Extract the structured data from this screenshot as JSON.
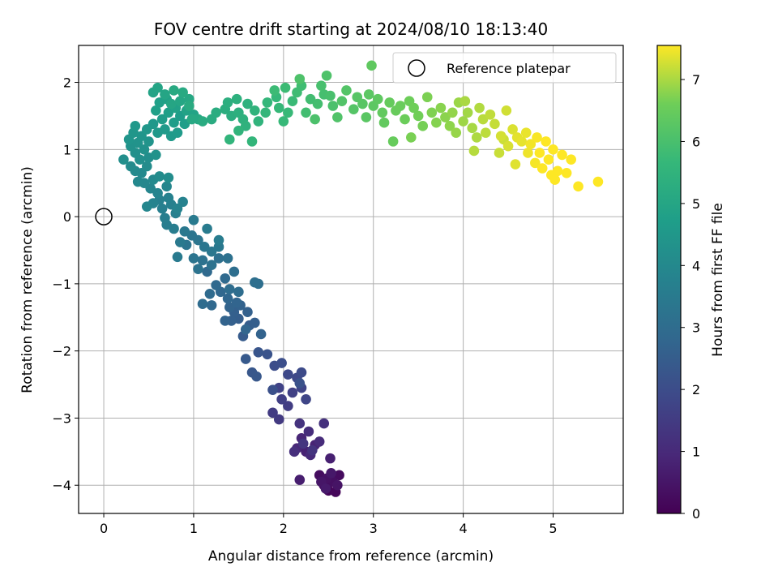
{
  "chart_data": {
    "type": "scatter",
    "title": "FOV centre drift starting at 2024/08/10 18:13:40",
    "xlabel": "Angular distance from reference (arcmin)",
    "ylabel": "Rotation from reference (arcmin)",
    "xlim": [
      -0.28,
      5.78
    ],
    "ylim": [
      -4.42,
      2.55
    ],
    "xticks": [
      0,
      1,
      2,
      3,
      4,
      5
    ],
    "xtick_labels": [
      "0",
      "1",
      "2",
      "3",
      "4",
      "5"
    ],
    "yticks": [
      -4,
      -3,
      -2,
      -1,
      0,
      1,
      2
    ],
    "ytick_labels": [
      "−4",
      "−3",
      "−2",
      "−1",
      "0",
      "1",
      "2"
    ],
    "grid": true,
    "colormap": "viridis",
    "colorbar": {
      "label": "Hours from first FF file",
      "range": [
        0,
        7.55
      ],
      "ticks": [
        0,
        1,
        2,
        3,
        4,
        5,
        6,
        7
      ],
      "tick_labels": [
        "0",
        "1",
        "2",
        "3",
        "4",
        "5",
        "6",
        "7"
      ]
    },
    "legend": {
      "position": "top-right",
      "entries": [
        {
          "label": "Reference platepar",
          "marker": "open-circle"
        }
      ]
    },
    "reference_point": {
      "x": 0,
      "y": 0
    },
    "points": [
      [
        2.5,
        -4.08,
        0.1
      ],
      [
        2.58,
        -4.1,
        0.15
      ],
      [
        2.45,
        -4.0,
        0.2
      ],
      [
        2.62,
        -3.85,
        0.25
      ],
      [
        2.4,
        -3.85,
        0.3
      ],
      [
        2.55,
        -3.95,
        0.35
      ],
      [
        2.48,
        -3.9,
        0.4
      ],
      [
        2.6,
        -4.0,
        0.45
      ],
      [
        2.42,
        -3.95,
        0.5
      ],
      [
        2.53,
        -3.82,
        0.55
      ],
      [
        2.47,
        -4.05,
        0.6
      ],
      [
        2.18,
        -3.92,
        0.7
      ],
      [
        2.52,
        -3.6,
        0.75
      ],
      [
        2.25,
        -3.5,
        0.8
      ],
      [
        2.35,
        -3.4,
        0.85
      ],
      [
        2.2,
        -3.3,
        0.9
      ],
      [
        2.15,
        -3.45,
        0.95
      ],
      [
        2.3,
        -3.55,
        1.0
      ],
      [
        2.4,
        -3.35,
        1.05
      ],
      [
        2.28,
        -3.2,
        1.1
      ],
      [
        2.12,
        -3.5,
        1.15
      ],
      [
        2.45,
        -3.08,
        1.2
      ],
      [
        2.18,
        -3.08,
        1.25
      ],
      [
        2.32,
        -3.48,
        1.3
      ],
      [
        2.22,
        -3.38,
        1.35
      ],
      [
        1.95,
        -3.02,
        1.45
      ],
      [
        1.88,
        -2.92,
        1.5
      ],
      [
        2.05,
        -2.82,
        1.55
      ],
      [
        1.98,
        -2.72,
        1.6
      ],
      [
        2.1,
        -2.62,
        1.65
      ],
      [
        1.95,
        -2.55,
        1.7
      ],
      [
        2.2,
        -2.55,
        1.75
      ],
      [
        2.25,
        -2.72,
        1.8
      ],
      [
        2.15,
        -2.4,
        1.85
      ],
      [
        2.05,
        -2.35,
        1.9
      ],
      [
        2.2,
        -2.32,
        1.95
      ],
      [
        1.9,
        -2.22,
        2.0
      ],
      [
        1.98,
        -2.18,
        2.05
      ],
      [
        1.88,
        -2.58,
        2.1
      ],
      [
        2.18,
        -2.48,
        2.15
      ],
      [
        1.82,
        -2.05,
        2.2
      ],
      [
        1.72,
        -2.02,
        2.25
      ],
      [
        1.65,
        -2.32,
        2.3
      ],
      [
        1.7,
        -2.38,
        2.35
      ],
      [
        1.58,
        -2.12,
        2.4
      ],
      [
        1.55,
        -1.78,
        2.45
      ],
      [
        1.62,
        -1.62,
        2.5
      ],
      [
        1.5,
        -1.52,
        2.52
      ],
      [
        1.68,
        -1.58,
        2.55
      ],
      [
        1.45,
        -1.42,
        2.58
      ],
      [
        1.42,
        -1.55,
        2.6
      ],
      [
        1.6,
        -1.42,
        2.62
      ],
      [
        1.52,
        -1.32,
        2.65
      ],
      [
        1.75,
        -1.75,
        2.68
      ],
      [
        1.35,
        -1.55,
        2.7
      ],
      [
        1.4,
        -1.35,
        2.72
      ],
      [
        1.48,
        -1.28,
        2.75
      ],
      [
        1.58,
        -1.68,
        2.78
      ],
      [
        1.38,
        -1.22,
        2.8
      ],
      [
        1.3,
        -1.12,
        2.82
      ],
      [
        1.2,
        -1.32,
        2.85
      ],
      [
        1.25,
        -1.02,
        2.88
      ],
      [
        1.35,
        -0.92,
        2.9
      ],
      [
        1.15,
        -0.82,
        2.92
      ],
      [
        1.18,
        -1.15,
        2.95
      ],
      [
        1.1,
        -1.3,
        2.98
      ],
      [
        1.4,
        -1.08,
        3.0
      ],
      [
        1.5,
        -1.12,
        3.02
      ],
      [
        1.45,
        -0.82,
        3.05
      ],
      [
        1.72,
        -1.0,
        3.08
      ],
      [
        1.68,
        -0.98,
        3.1
      ],
      [
        1.28,
        -0.62,
        3.12
      ],
      [
        1.38,
        -0.62,
        3.15
      ],
      [
        1.2,
        -0.72,
        3.18
      ],
      [
        1.1,
        -0.65,
        3.2
      ],
      [
        1.05,
        -0.78,
        3.22
      ],
      [
        1.0,
        -0.62,
        3.25
      ],
      [
        0.92,
        -0.42,
        3.28
      ],
      [
        1.05,
        -0.35,
        3.3
      ],
      [
        0.98,
        -0.28,
        3.32
      ],
      [
        1.12,
        -0.45,
        3.35
      ],
      [
        1.2,
        -0.52,
        3.38
      ],
      [
        1.28,
        -0.45,
        3.4
      ],
      [
        0.9,
        -0.22,
        3.42
      ],
      [
        0.85,
        -0.38,
        3.45
      ],
      [
        1.0,
        -0.05,
        3.48
      ],
      [
        0.82,
        -0.6,
        3.5
      ],
      [
        1.15,
        -0.18,
        3.52
      ],
      [
        1.28,
        -0.35,
        3.55
      ],
      [
        0.78,
        -0.18,
        3.58
      ],
      [
        0.7,
        -0.12,
        3.6
      ],
      [
        0.68,
        -0.02,
        3.62
      ],
      [
        0.8,
        0.05,
        3.65
      ],
      [
        0.65,
        0.12,
        3.68
      ],
      [
        0.75,
        0.18,
        3.7
      ],
      [
        0.62,
        0.25,
        3.72
      ],
      [
        0.72,
        0.28,
        3.75
      ],
      [
        0.88,
        0.22,
        3.78
      ],
      [
        0.55,
        0.2,
        3.8
      ],
      [
        0.82,
        0.12,
        3.82
      ],
      [
        0.6,
        0.35,
        3.85
      ],
      [
        0.52,
        0.42,
        3.88
      ],
      [
        0.7,
        0.45,
        3.9
      ],
      [
        0.48,
        0.15,
        3.92
      ],
      [
        0.45,
        0.5,
        3.95
      ],
      [
        0.38,
        0.52,
        3.98
      ],
      [
        0.55,
        0.55,
        4.0
      ],
      [
        0.42,
        0.65,
        4.02
      ],
      [
        0.35,
        0.68,
        4.05
      ],
      [
        0.3,
        0.75,
        4.08
      ],
      [
        0.48,
        0.75,
        4.1
      ],
      [
        0.62,
        0.6,
        4.12
      ],
      [
        0.72,
        0.58,
        4.15
      ],
      [
        0.5,
        0.88,
        4.18
      ],
      [
        0.4,
        0.85,
        4.2
      ],
      [
        0.22,
        0.85,
        4.22
      ],
      [
        0.35,
        0.95,
        4.25
      ],
      [
        0.45,
        1.0,
        4.28
      ],
      [
        0.58,
        0.92,
        4.3
      ],
      [
        0.3,
        1.05,
        4.32
      ],
      [
        0.38,
        1.1,
        4.35
      ],
      [
        0.5,
        1.12,
        4.38
      ],
      [
        0.42,
        1.2,
        4.4
      ],
      [
        0.28,
        1.15,
        4.42
      ],
      [
        0.33,
        1.25,
        4.45
      ],
      [
        0.48,
        1.3,
        4.48
      ],
      [
        0.35,
        1.35,
        4.5
      ],
      [
        0.55,
        1.38,
        4.52
      ],
      [
        0.6,
        1.25,
        4.55
      ],
      [
        0.68,
        1.3,
        4.58
      ],
      [
        0.75,
        1.2,
        4.6
      ],
      [
        0.82,
        1.25,
        4.62
      ],
      [
        0.65,
        1.45,
        4.65
      ],
      [
        0.78,
        1.4,
        4.68
      ],
      [
        0.85,
        1.5,
        4.7
      ],
      [
        0.9,
        1.38,
        4.72
      ],
      [
        0.72,
        1.55,
        4.75
      ],
      [
        0.58,
        1.58,
        4.78
      ],
      [
        0.62,
        1.7,
        4.8
      ],
      [
        0.7,
        1.75,
        4.82
      ],
      [
        0.8,
        1.62,
        4.85
      ],
      [
        0.92,
        1.58,
        4.88
      ],
      [
        1.0,
        1.52,
        4.9
      ],
      [
        0.55,
        1.85,
        4.92
      ],
      [
        0.6,
        1.92,
        4.95
      ],
      [
        0.68,
        1.82,
        4.98
      ],
      [
        0.75,
        1.68,
        5.0
      ],
      [
        0.85,
        1.72,
        5.02
      ],
      [
        0.95,
        1.75,
        5.05
      ],
      [
        1.05,
        1.45,
        5.08
      ],
      [
        0.98,
        1.45,
        5.1
      ],
      [
        0.88,
        1.85,
        5.12
      ],
      [
        0.78,
        1.88,
        5.15
      ],
      [
        0.95,
        1.65,
        5.18
      ],
      [
        1.1,
        1.42,
        5.2
      ],
      [
        1.2,
        1.45,
        5.22
      ],
      [
        1.25,
        1.55,
        5.25
      ],
      [
        1.35,
        1.6,
        5.28
      ],
      [
        1.42,
        1.5,
        5.3
      ],
      [
        1.38,
        1.7,
        5.32
      ],
      [
        1.5,
        1.55,
        5.35
      ],
      [
        1.48,
        1.75,
        5.38
      ],
      [
        1.55,
        1.45,
        5.4
      ],
      [
        1.6,
        1.68,
        5.42
      ],
      [
        1.58,
        1.35,
        5.45
      ],
      [
        1.68,
        1.58,
        5.48
      ],
      [
        1.72,
        1.42,
        5.5
      ],
      [
        1.5,
        1.28,
        5.52
      ],
      [
        1.4,
        1.15,
        5.55
      ],
      [
        1.65,
        1.12,
        5.58
      ],
      [
        1.8,
        1.55,
        5.6
      ],
      [
        1.82,
        1.7,
        5.62
      ],
      [
        1.92,
        1.78,
        5.65
      ],
      [
        1.95,
        1.62,
        5.68
      ],
      [
        2.0,
        1.42,
        5.7
      ],
      [
        2.05,
        1.55,
        5.72
      ],
      [
        2.1,
        1.72,
        5.75
      ],
      [
        1.9,
        1.88,
        5.78
      ],
      [
        2.02,
        1.92,
        5.8
      ],
      [
        2.15,
        1.85,
        5.82
      ],
      [
        2.2,
        1.95,
        5.85
      ],
      [
        2.3,
        1.75,
        5.88
      ],
      [
        2.25,
        1.55,
        5.9
      ],
      [
        2.38,
        1.68,
        5.92
      ],
      [
        2.45,
        1.82,
        5.95
      ],
      [
        2.42,
        1.95,
        5.98
      ],
      [
        2.52,
        1.8,
        6.0
      ],
      [
        2.55,
        1.65,
        6.02
      ],
      [
        2.35,
        1.45,
        6.05
      ],
      [
        2.18,
        2.05,
        6.08
      ],
      [
        2.48,
        2.1,
        6.1
      ],
      [
        2.6,
        1.48,
        6.12
      ],
      [
        2.65,
        1.72,
        6.15
      ],
      [
        2.7,
        1.88,
        6.18
      ],
      [
        2.78,
        1.6,
        6.2
      ],
      [
        2.82,
        1.78,
        6.22
      ],
      [
        2.88,
        1.68,
        6.25
      ],
      [
        2.92,
        1.48,
        6.28
      ],
      [
        2.95,
        1.82,
        6.3
      ],
      [
        3.0,
        1.65,
        6.32
      ],
      [
        3.05,
        1.75,
        6.35
      ],
      [
        2.98,
        2.25,
        6.38
      ],
      [
        3.1,
        1.55,
        6.4
      ],
      [
        3.12,
        1.4,
        6.42
      ],
      [
        3.18,
        1.7,
        6.45
      ],
      [
        3.22,
        1.12,
        6.48
      ],
      [
        3.25,
        1.58,
        6.5
      ],
      [
        3.3,
        1.65,
        6.52
      ],
      [
        3.35,
        1.45,
        6.55
      ],
      [
        3.4,
        1.72,
        6.58
      ],
      [
        3.45,
        1.62,
        6.6
      ],
      [
        3.5,
        1.5,
        6.62
      ],
      [
        3.55,
        1.35,
        6.65
      ],
      [
        3.42,
        1.18,
        6.68
      ],
      [
        3.6,
        1.78,
        6.7
      ],
      [
        3.65,
        1.55,
        6.72
      ],
      [
        3.7,
        1.4,
        6.75
      ],
      [
        3.75,
        1.62,
        6.78
      ],
      [
        3.8,
        1.48,
        6.8
      ],
      [
        3.85,
        1.35,
        6.82
      ],
      [
        3.88,
        1.55,
        6.85
      ],
      [
        3.92,
        1.25,
        6.88
      ],
      [
        3.95,
        1.7,
        6.9
      ],
      [
        4.0,
        1.42,
        6.92
      ],
      [
        4.05,
        1.55,
        6.95
      ],
      [
        4.1,
        1.32,
        6.98
      ],
      [
        4.02,
        1.72,
        7.0
      ],
      [
        4.15,
        1.18,
        7.02
      ],
      [
        4.18,
        1.62,
        7.05
      ],
      [
        4.12,
        0.98,
        7.08
      ],
      [
        4.22,
        1.45,
        7.1
      ],
      [
        4.25,
        1.25,
        7.12
      ],
      [
        4.3,
        1.52,
        7.15
      ],
      [
        4.35,
        1.38,
        7.18
      ],
      [
        4.4,
        0.95,
        7.2
      ],
      [
        4.45,
        1.15,
        7.22
      ],
      [
        4.48,
        1.58,
        7.25
      ],
      [
        4.42,
        1.2,
        7.28
      ],
      [
        4.5,
        1.05,
        7.3
      ],
      [
        4.55,
        1.3,
        7.32
      ],
      [
        4.58,
        0.78,
        7.35
      ],
      [
        4.6,
        1.18,
        7.38
      ],
      [
        4.65,
        1.12,
        7.4
      ],
      [
        4.7,
        1.25,
        7.42
      ],
      [
        4.72,
        0.95,
        7.45
      ],
      [
        4.75,
        1.08,
        7.48
      ],
      [
        4.8,
        0.8,
        7.5
      ],
      [
        4.82,
        1.18,
        7.52
      ],
      [
        4.85,
        0.95,
        7.55
      ],
      [
        4.88,
        0.72,
        7.55
      ],
      [
        4.92,
        1.12,
        7.55
      ],
      [
        4.95,
        0.85,
        7.55
      ],
      [
        4.98,
        0.62,
        7.55
      ],
      [
        5.0,
        1.0,
        7.55
      ],
      [
        5.05,
        0.68,
        7.55
      ],
      [
        5.1,
        0.92,
        7.55
      ],
      [
        5.15,
        0.65,
        7.55
      ],
      [
        5.2,
        0.85,
        7.55
      ],
      [
        5.28,
        0.45,
        7.55
      ],
      [
        5.02,
        0.55,
        7.55
      ],
      [
        5.5,
        0.52,
        7.55
      ]
    ]
  }
}
